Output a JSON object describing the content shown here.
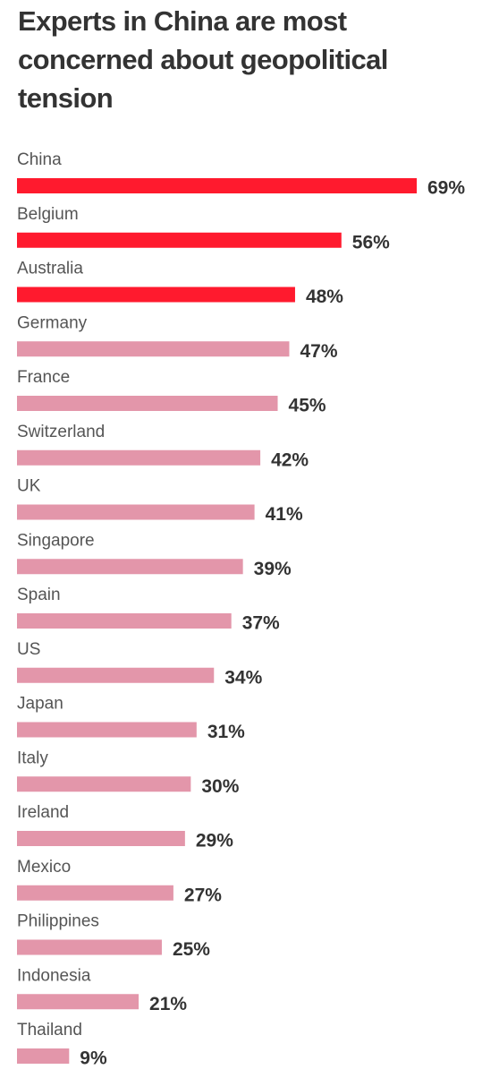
{
  "chart_data": {
    "type": "bar",
    "orientation": "horizontal",
    "title": "Experts in China are most concerned about geopolitical tension",
    "xlabel": "",
    "ylabel": "",
    "xlim": [
      0,
      69
    ],
    "grid": false,
    "legend": "none",
    "value_suffix": "%",
    "highlight_color": "#ff1a2e",
    "base_color": "#e396aa",
    "categories": [
      "China",
      "Belgium",
      "Australia",
      "Germany",
      "France",
      "Switzerland",
      "UK",
      "Singapore",
      "Spain",
      "US",
      "Japan",
      "Italy",
      "Ireland",
      "Mexico",
      "Philippines",
      "Indonesia",
      "Thailand"
    ],
    "values": [
      69,
      56,
      48,
      47,
      45,
      42,
      41,
      39,
      37,
      34,
      31,
      30,
      29,
      27,
      25,
      21,
      9
    ],
    "highlighted": [
      true,
      true,
      true,
      false,
      false,
      false,
      false,
      false,
      false,
      false,
      false,
      false,
      false,
      false,
      false,
      false,
      false
    ]
  }
}
